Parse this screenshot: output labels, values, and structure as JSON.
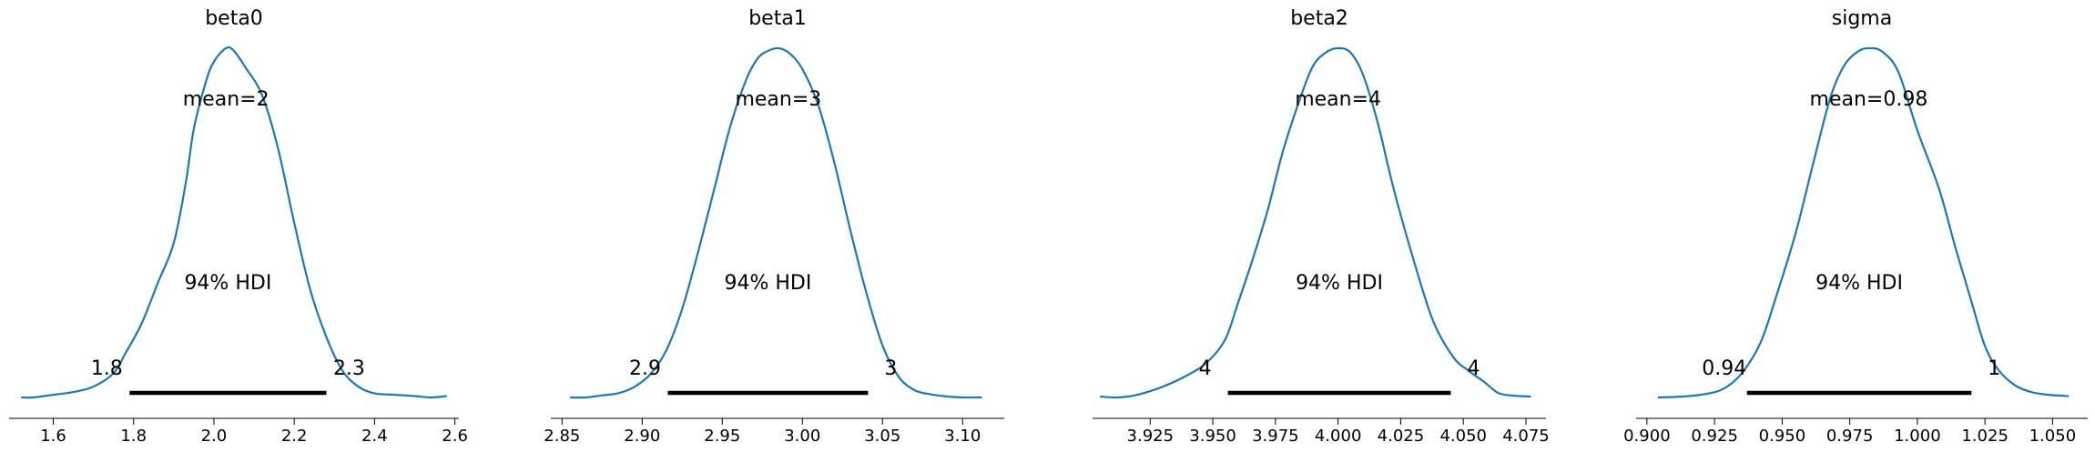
{
  "colors": {
    "density_line": "#1f77b4",
    "hdi_bar": "#000000",
    "axis": "#000000"
  },
  "chart_data": [
    {
      "type": "line",
      "title": "beta0",
      "mean_label": "mean=2",
      "hdi_label": "94% HDI",
      "hdi_lower_label": "1.8",
      "hdi_upper_label": "2.3",
      "hdi": [
        1.79,
        2.28
      ],
      "xlim": [
        1.49,
        2.61
      ],
      "xticks": [
        1.6,
        1.8,
        2.0,
        2.2,
        2.4,
        2.6
      ],
      "xtick_labels": [
        "1.6",
        "1.8",
        "2.0",
        "2.2",
        "2.4",
        "2.6"
      ],
      "x": [
        1.52,
        1.55,
        1.6,
        1.65,
        1.7,
        1.75,
        1.78,
        1.82,
        1.86,
        1.9,
        1.93,
        1.95,
        1.98,
        2.0,
        2.03,
        2.05,
        2.08,
        2.12,
        2.16,
        2.2,
        2.24,
        2.28,
        2.32,
        2.36,
        2.4,
        2.45,
        2.5,
        2.54,
        2.58
      ],
      "y": [
        0.0,
        0.0,
        0.02,
        0.04,
        0.08,
        0.18,
        0.33,
        0.55,
        0.85,
        1.15,
        1.6,
        2.0,
        2.35,
        2.5,
        2.6,
        2.58,
        2.45,
        2.25,
        1.85,
        1.3,
        0.8,
        0.45,
        0.2,
        0.08,
        0.03,
        0.02,
        0.01,
        0.0,
        0.01
      ]
    },
    {
      "type": "line",
      "title": "beta1",
      "mean_label": "mean=3",
      "hdi_label": "94% HDI",
      "hdi_lower_label": "2.9",
      "hdi_upper_label": "3",
      "hdi": [
        2.916,
        3.041
      ],
      "xlim": [
        2.843,
        3.126
      ],
      "xticks": [
        2.85,
        2.9,
        2.95,
        3.0,
        3.05,
        3.1
      ],
      "xtick_labels": [
        "2.85",
        "2.90",
        "2.95",
        "3.00",
        "3.05",
        "3.10"
      ],
      "x": [
        2.855,
        2.865,
        2.875,
        2.885,
        2.895,
        2.905,
        2.915,
        2.925,
        2.935,
        2.945,
        2.955,
        2.965,
        2.972,
        2.978,
        2.985,
        2.992,
        3.0,
        3.01,
        3.02,
        3.03,
        3.04,
        3.05,
        3.06,
        3.07,
        3.08,
        3.09,
        3.1,
        3.112
      ],
      "y": [
        0.0,
        0.0,
        0.02,
        0.04,
        0.1,
        0.22,
        0.45,
        0.85,
        1.4,
        2.0,
        2.6,
        3.05,
        3.25,
        3.32,
        3.35,
        3.3,
        3.15,
        2.8,
        2.25,
        1.6,
        1.0,
        0.5,
        0.2,
        0.07,
        0.03,
        0.01,
        0.0,
        0.0
      ]
    },
    {
      "type": "line",
      "title": "beta2",
      "mean_label": "mean=4",
      "hdi_label": "94% HDI",
      "hdi_lower_label": "4",
      "hdi_upper_label": "4",
      "hdi": [
        3.956,
        4.045
      ],
      "xlim": [
        3.902,
        4.083
      ],
      "xticks": [
        3.925,
        3.95,
        3.975,
        4.0,
        4.025,
        4.05,
        4.075
      ],
      "xtick_labels": [
        "3.925",
        "3.950",
        "3.975",
        "4.000",
        "4.025",
        "4.050",
        "4.075"
      ],
      "x": [
        3.905,
        3.912,
        3.92,
        3.93,
        3.94,
        3.948,
        3.955,
        3.96,
        3.966,
        3.972,
        3.978,
        3.985,
        3.99,
        3.995,
        4.0,
        4.005,
        4.01,
        4.016,
        4.022,
        4.03,
        4.038,
        4.046,
        4.052,
        4.058,
        4.064,
        4.07,
        4.077
      ],
      "y": [
        0.01,
        0.0,
        0.03,
        0.12,
        0.25,
        0.4,
        0.65,
        1.05,
        1.55,
        2.1,
        2.75,
        3.35,
        3.7,
        3.85,
        3.9,
        3.85,
        3.6,
        3.05,
        2.35,
        1.55,
        0.85,
        0.45,
        0.3,
        0.18,
        0.05,
        0.02,
        0.01
      ]
    },
    {
      "type": "line",
      "title": "sigma",
      "mean_label": "mean=0.98",
      "hdi_label": "94% HDI",
      "hdi_lower_label": "0.94",
      "hdi_upper_label": "1",
      "hdi": [
        0.937,
        1.02
      ],
      "xlim": [
        0.896,
        1.063
      ],
      "xticks": [
        0.9,
        0.925,
        0.95,
        0.975,
        1.0,
        1.025,
        1.05
      ],
      "xtick_labels": [
        "0.900",
        "0.925",
        "0.950",
        "0.975",
        "1.000",
        "1.025",
        "1.050"
      ],
      "x": [
        0.904,
        0.912,
        0.92,
        0.928,
        0.935,
        0.942,
        0.948,
        0.955,
        0.962,
        0.968,
        0.973,
        0.978,
        0.982,
        0.987,
        0.993,
        1.0,
        1.008,
        1.014,
        1.02,
        1.025,
        1.03,
        1.036,
        1.042,
        1.048,
        1.056
      ],
      "y": [
        0.0,
        0.01,
        0.04,
        0.12,
        0.35,
        0.8,
        1.5,
        2.4,
        3.5,
        4.4,
        4.85,
        5.05,
        5.1,
        5.05,
        4.75,
        3.9,
        3.05,
        2.2,
        1.4,
        0.75,
        0.4,
        0.18,
        0.08,
        0.04,
        0.02
      ]
    }
  ]
}
